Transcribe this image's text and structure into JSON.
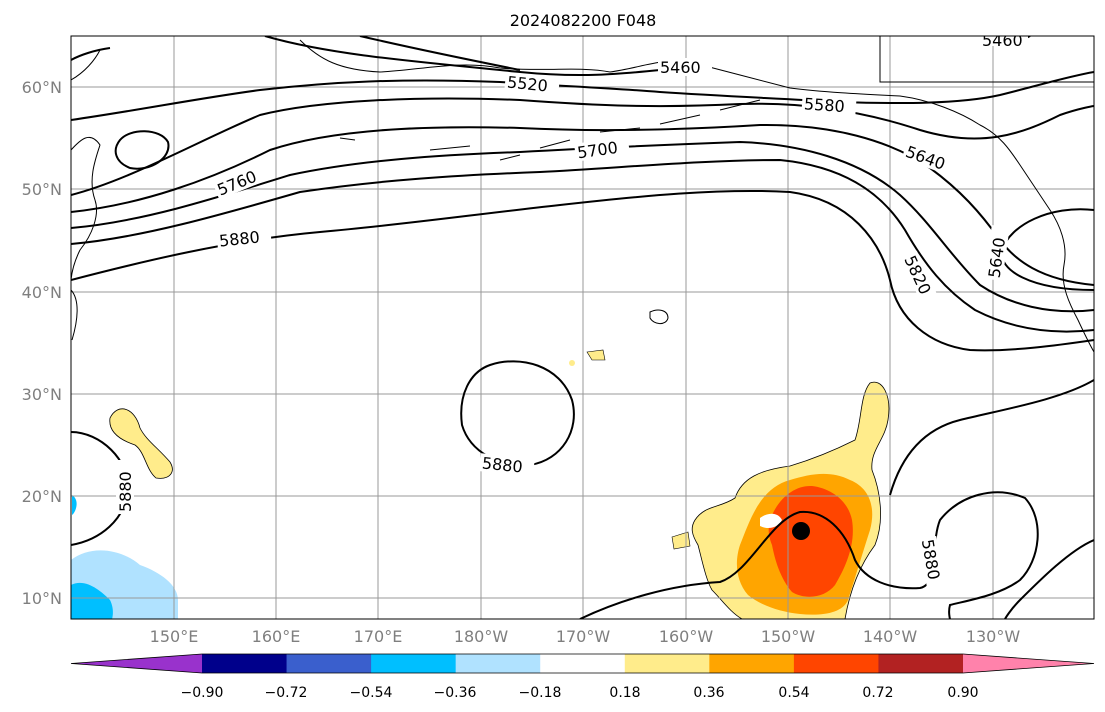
{
  "title": "2024082200 F048",
  "map": {
    "lat_labels": [
      "60°N",
      "50°N",
      "40°N",
      "30°N",
      "20°N",
      "10°N"
    ],
    "lon_labels": [
      "150°E",
      "160°E",
      "170°E",
      "180°W",
      "170°W",
      "160°W",
      "150°W",
      "140°W",
      "130°W"
    ],
    "contour_labels": [
      "5460",
      "5520",
      "5580",
      "5640",
      "5700",
      "5760",
      "5820",
      "5880",
      "5880",
      "5880",
      "5880",
      "5640",
      "5460"
    ],
    "contour_color": "#000000",
    "storm_marker_color": "#000000"
  },
  "colorbar": {
    "tick_labels": [
      "−0.90",
      "−0.72",
      "−0.54",
      "−0.36",
      "−0.18",
      "0.18",
      "0.36",
      "0.54",
      "0.72",
      "0.90"
    ],
    "colors": [
      "#9932cc",
      "#00008b",
      "#3a5fcd",
      "#00bfff",
      "#b0e2ff",
      "#ffffff",
      "#ffec8b",
      "#ffa500",
      "#ff4500",
      "#b22222",
      "#ff82ab"
    ]
  }
}
